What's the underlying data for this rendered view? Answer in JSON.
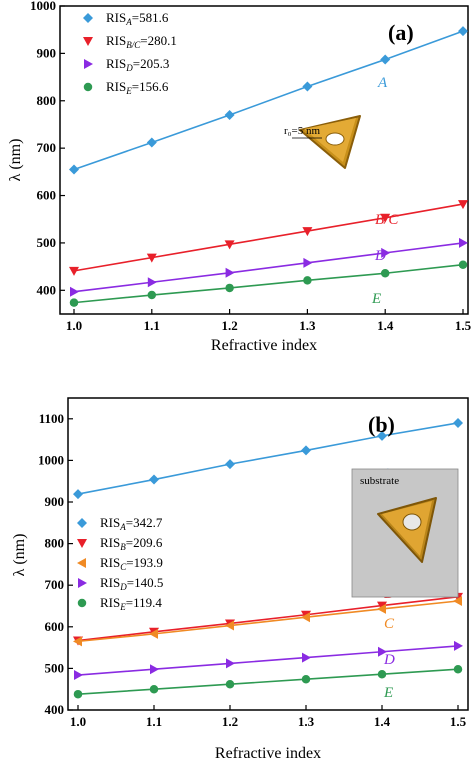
{
  "chart_data": [
    {
      "type": "line",
      "panel_label": "(a)",
      "xlabel": "Refractive index",
      "ylabel": "λ (nm)",
      "xlim": [
        1.0,
        1.5
      ],
      "ylim": [
        350,
        1000
      ],
      "x": [
        1.0,
        1.1,
        1.2,
        1.3,
        1.4,
        1.5
      ],
      "x_ticks": [
        "1.0",
        "1.1",
        "1.2",
        "1.3",
        "1.4",
        "1.5"
      ],
      "y_ticks": [
        400,
        500,
        600,
        700,
        800,
        900,
        1000
      ],
      "legend_position": "top-left",
      "series": [
        {
          "label": "A",
          "legend_main": "RIS",
          "legend_sub": "A",
          "legend_value": "=581.6",
          "marker": "diamond",
          "color": "#3a9ad9",
          "values": [
            655,
            712,
            770,
            830,
            887,
            947
          ]
        },
        {
          "label": "B/C",
          "legend_main": "RIS",
          "legend_sub": "B/C",
          "legend_value": "=280.1",
          "marker": "triangle-down",
          "color": "#e8202a",
          "values": [
            441,
            469,
            497,
            525,
            553,
            582
          ]
        },
        {
          "label": "D",
          "legend_main": "RIS",
          "legend_sub": "D",
          "legend_value": "=205.3",
          "marker": "triangle-right",
          "color": "#8a2be2",
          "values": [
            397,
            417,
            437,
            458,
            479,
            500
          ]
        },
        {
          "label": "E",
          "legend_main": "RIS",
          "legend_sub": "E",
          "legend_value": "=156.6",
          "marker": "circle",
          "color": "#2e9a52",
          "values": [
            374,
            390,
            405,
            421,
            436,
            454
          ]
        }
      ],
      "inset_label": "r₀=5 nm"
    },
    {
      "type": "line",
      "panel_label": "(b)",
      "xlabel": "Refractive index",
      "ylabel": "λ (nm)",
      "xlim": [
        1.0,
        1.5
      ],
      "ylim": [
        400,
        1150
      ],
      "x": [
        1.0,
        1.1,
        1.2,
        1.3,
        1.4,
        1.5
      ],
      "x_ticks": [
        "1.0",
        "1.1",
        "1.2",
        "1.3",
        "1.4",
        "1.5"
      ],
      "y_ticks": [
        400,
        500,
        600,
        700,
        800,
        900,
        1000,
        1100
      ],
      "legend_position": "middle-left",
      "series": [
        {
          "label": "A",
          "legend_main": "RIS",
          "legend_sub": "A",
          "legend_value": "=342.7",
          "marker": "diamond",
          "color": "#3a9ad9",
          "values": [
            919,
            954,
            991,
            1024,
            1059,
            1090
          ]
        },
        {
          "label": "B",
          "legend_main": "RIS",
          "legend_sub": "B",
          "legend_value": "=209.6",
          "marker": "triangle-down",
          "color": "#e8202a",
          "values": [
            567,
            588,
            608,
            629,
            651,
            672
          ]
        },
        {
          "label": "C",
          "legend_main": "RIS",
          "legend_sub": "C",
          "legend_value": "=193.9",
          "marker": "triangle-left",
          "color": "#f08a24",
          "values": [
            565,
            583,
            603,
            623,
            643,
            662
          ]
        },
        {
          "label": "D",
          "legend_main": "RIS",
          "legend_sub": "D",
          "legend_value": "=140.5",
          "marker": "triangle-right",
          "color": "#8a2be2",
          "values": [
            484,
            498,
            512,
            526,
            540,
            554
          ]
        },
        {
          "label": "E",
          "legend_main": "RIS",
          "legend_sub": "E",
          "legend_value": "=119.4",
          "marker": "circle",
          "color": "#2e9a52",
          "values": [
            438,
            450,
            462,
            474,
            486,
            498
          ]
        }
      ],
      "inset_label": "substrate"
    }
  ]
}
